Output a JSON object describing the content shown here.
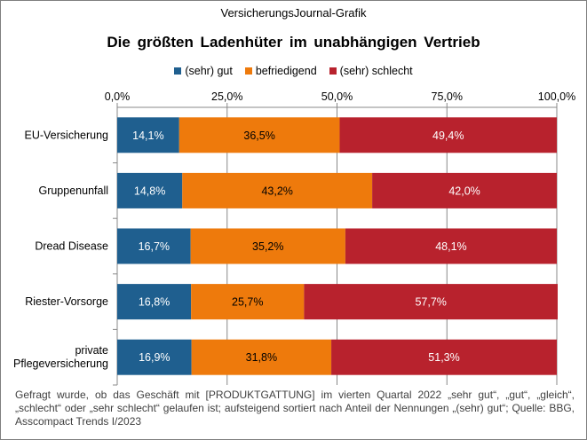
{
  "header": {
    "source": "VersicherungsJournal-Grafik",
    "title": "Die größten Ladenhüter im unabhängigen Vertrieb"
  },
  "chart_data": {
    "type": "bar",
    "orientation": "horizontal",
    "stacked": true,
    "title": "Die größten Ladenhüter im unabhängigen Vertrieb",
    "categories": [
      "EU-Versicherung",
      "Gruppenunfall",
      "Dread Disease",
      "Riester-Vorsorge",
      "private Pflegeversicherung"
    ],
    "category_lines": [
      [
        "EU-Versicherung"
      ],
      [
        "Gruppenunfall"
      ],
      [
        "Dread Disease"
      ],
      [
        "Riester-Vorsorge"
      ],
      [
        "private",
        "Pflegeversicherung"
      ]
    ],
    "series": [
      {
        "name": "(sehr) gut",
        "color": "#1f5f8f",
        "values": [
          14.1,
          14.8,
          16.7,
          16.8,
          16.9
        ],
        "labels": [
          "14,1%",
          "14,8%",
          "16,7%",
          "16,8%",
          "16,9%"
        ]
      },
      {
        "name": "befriedigend",
        "color": "#ee7a0c",
        "values": [
          36.5,
          43.2,
          35.2,
          25.7,
          31.8
        ],
        "labels": [
          "36,5%",
          "43,2%",
          "35,2%",
          "25,7%",
          "31,8%"
        ]
      },
      {
        "name": "(sehr) schlecht",
        "color": "#b8222d",
        "values": [
          49.4,
          42.0,
          48.1,
          57.7,
          51.3
        ],
        "labels": [
          "49,4%",
          "42,0%",
          "48,1%",
          "57,7%",
          "51,3%"
        ]
      }
    ],
    "xlim": [
      0,
      100
    ],
    "xticks": [
      0,
      25,
      50,
      75,
      100
    ],
    "xtick_labels": [
      "0,0%",
      "25,0%",
      "50,0%",
      "75,0%",
      "100,0%"
    ],
    "legend_position": "top",
    "xaxis_position": "top",
    "grid": true
  },
  "footnote": "Gefragt wurde, ob das Geschäft mit [PRODUKTGATTUNG] im vierten Quartal 2022 „sehr gut“, „gut“, „gleich“, „schlecht“ oder „sehr schlecht“ gelaufen ist; aufsteigend sortiert nach Anteil der Nennungen „(sehr) gut“; Quelle: BBG, Asscompact Trends I/2023"
}
